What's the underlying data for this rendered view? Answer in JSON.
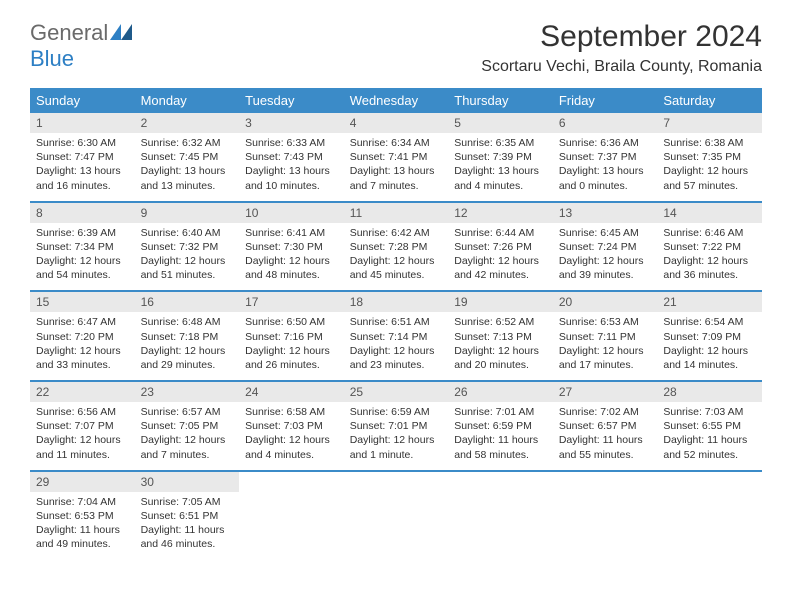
{
  "logo": {
    "general": "General",
    "blue": "Blue"
  },
  "title": "September 2024",
  "location": "Scortaru Vechi, Braila County, Romania",
  "colors": {
    "header_bg": "#3b8bc8",
    "header_fg": "#ffffff",
    "daynum_bg": "#e9e9e9",
    "daynum_fg": "#555555",
    "border": "#3b8bc8",
    "logo_gray": "#6a6a6a",
    "logo_blue": "#2d7fc4"
  },
  "dayheads": [
    "Sunday",
    "Monday",
    "Tuesday",
    "Wednesday",
    "Thursday",
    "Friday",
    "Saturday"
  ],
  "weeks": [
    [
      {
        "n": "1",
        "sr": "Sunrise: 6:30 AM",
        "ss": "Sunset: 7:47 PM",
        "d1": "Daylight: 13 hours",
        "d2": "and 16 minutes."
      },
      {
        "n": "2",
        "sr": "Sunrise: 6:32 AM",
        "ss": "Sunset: 7:45 PM",
        "d1": "Daylight: 13 hours",
        "d2": "and 13 minutes."
      },
      {
        "n": "3",
        "sr": "Sunrise: 6:33 AM",
        "ss": "Sunset: 7:43 PM",
        "d1": "Daylight: 13 hours",
        "d2": "and 10 minutes."
      },
      {
        "n": "4",
        "sr": "Sunrise: 6:34 AM",
        "ss": "Sunset: 7:41 PM",
        "d1": "Daylight: 13 hours",
        "d2": "and 7 minutes."
      },
      {
        "n": "5",
        "sr": "Sunrise: 6:35 AM",
        "ss": "Sunset: 7:39 PM",
        "d1": "Daylight: 13 hours",
        "d2": "and 4 minutes."
      },
      {
        "n": "6",
        "sr": "Sunrise: 6:36 AM",
        "ss": "Sunset: 7:37 PM",
        "d1": "Daylight: 13 hours",
        "d2": "and 0 minutes."
      },
      {
        "n": "7",
        "sr": "Sunrise: 6:38 AM",
        "ss": "Sunset: 7:35 PM",
        "d1": "Daylight: 12 hours",
        "d2": "and 57 minutes."
      }
    ],
    [
      {
        "n": "8",
        "sr": "Sunrise: 6:39 AM",
        "ss": "Sunset: 7:34 PM",
        "d1": "Daylight: 12 hours",
        "d2": "and 54 minutes."
      },
      {
        "n": "9",
        "sr": "Sunrise: 6:40 AM",
        "ss": "Sunset: 7:32 PM",
        "d1": "Daylight: 12 hours",
        "d2": "and 51 minutes."
      },
      {
        "n": "10",
        "sr": "Sunrise: 6:41 AM",
        "ss": "Sunset: 7:30 PM",
        "d1": "Daylight: 12 hours",
        "d2": "and 48 minutes."
      },
      {
        "n": "11",
        "sr": "Sunrise: 6:42 AM",
        "ss": "Sunset: 7:28 PM",
        "d1": "Daylight: 12 hours",
        "d2": "and 45 minutes."
      },
      {
        "n": "12",
        "sr": "Sunrise: 6:44 AM",
        "ss": "Sunset: 7:26 PM",
        "d1": "Daylight: 12 hours",
        "d2": "and 42 minutes."
      },
      {
        "n": "13",
        "sr": "Sunrise: 6:45 AM",
        "ss": "Sunset: 7:24 PM",
        "d1": "Daylight: 12 hours",
        "d2": "and 39 minutes."
      },
      {
        "n": "14",
        "sr": "Sunrise: 6:46 AM",
        "ss": "Sunset: 7:22 PM",
        "d1": "Daylight: 12 hours",
        "d2": "and 36 minutes."
      }
    ],
    [
      {
        "n": "15",
        "sr": "Sunrise: 6:47 AM",
        "ss": "Sunset: 7:20 PM",
        "d1": "Daylight: 12 hours",
        "d2": "and 33 minutes."
      },
      {
        "n": "16",
        "sr": "Sunrise: 6:48 AM",
        "ss": "Sunset: 7:18 PM",
        "d1": "Daylight: 12 hours",
        "d2": "and 29 minutes."
      },
      {
        "n": "17",
        "sr": "Sunrise: 6:50 AM",
        "ss": "Sunset: 7:16 PM",
        "d1": "Daylight: 12 hours",
        "d2": "and 26 minutes."
      },
      {
        "n": "18",
        "sr": "Sunrise: 6:51 AM",
        "ss": "Sunset: 7:14 PM",
        "d1": "Daylight: 12 hours",
        "d2": "and 23 minutes."
      },
      {
        "n": "19",
        "sr": "Sunrise: 6:52 AM",
        "ss": "Sunset: 7:13 PM",
        "d1": "Daylight: 12 hours",
        "d2": "and 20 minutes."
      },
      {
        "n": "20",
        "sr": "Sunrise: 6:53 AM",
        "ss": "Sunset: 7:11 PM",
        "d1": "Daylight: 12 hours",
        "d2": "and 17 minutes."
      },
      {
        "n": "21",
        "sr": "Sunrise: 6:54 AM",
        "ss": "Sunset: 7:09 PM",
        "d1": "Daylight: 12 hours",
        "d2": "and 14 minutes."
      }
    ],
    [
      {
        "n": "22",
        "sr": "Sunrise: 6:56 AM",
        "ss": "Sunset: 7:07 PM",
        "d1": "Daylight: 12 hours",
        "d2": "and 11 minutes."
      },
      {
        "n": "23",
        "sr": "Sunrise: 6:57 AM",
        "ss": "Sunset: 7:05 PM",
        "d1": "Daylight: 12 hours",
        "d2": "and 7 minutes."
      },
      {
        "n": "24",
        "sr": "Sunrise: 6:58 AM",
        "ss": "Sunset: 7:03 PM",
        "d1": "Daylight: 12 hours",
        "d2": "and 4 minutes."
      },
      {
        "n": "25",
        "sr": "Sunrise: 6:59 AM",
        "ss": "Sunset: 7:01 PM",
        "d1": "Daylight: 12 hours",
        "d2": "and 1 minute."
      },
      {
        "n": "26",
        "sr": "Sunrise: 7:01 AM",
        "ss": "Sunset: 6:59 PM",
        "d1": "Daylight: 11 hours",
        "d2": "and 58 minutes."
      },
      {
        "n": "27",
        "sr": "Sunrise: 7:02 AM",
        "ss": "Sunset: 6:57 PM",
        "d1": "Daylight: 11 hours",
        "d2": "and 55 minutes."
      },
      {
        "n": "28",
        "sr": "Sunrise: 7:03 AM",
        "ss": "Sunset: 6:55 PM",
        "d1": "Daylight: 11 hours",
        "d2": "and 52 minutes."
      }
    ],
    [
      {
        "n": "29",
        "sr": "Sunrise: 7:04 AM",
        "ss": "Sunset: 6:53 PM",
        "d1": "Daylight: 11 hours",
        "d2": "and 49 minutes."
      },
      {
        "n": "30",
        "sr": "Sunrise: 7:05 AM",
        "ss": "Sunset: 6:51 PM",
        "d1": "Daylight: 11 hours",
        "d2": "and 46 minutes."
      },
      null,
      null,
      null,
      null,
      null
    ]
  ]
}
